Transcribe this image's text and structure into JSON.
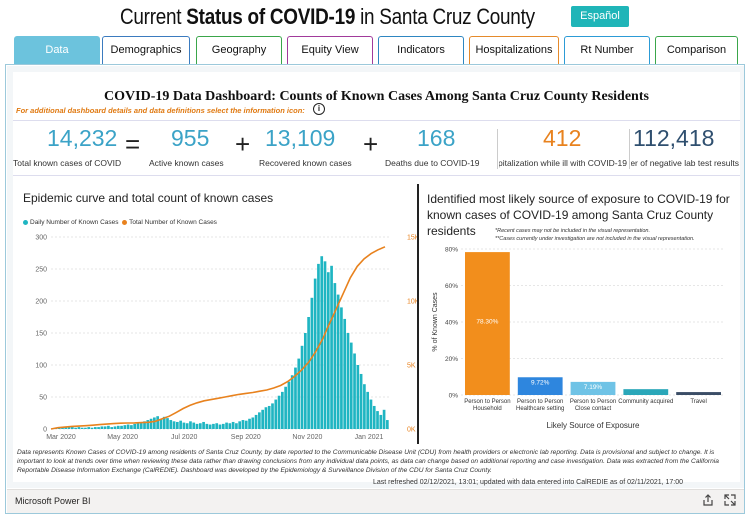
{
  "header": {
    "title_pre": "Current ",
    "title_bold": "Status of COVID-19",
    "title_post": " in Santa Cruz County",
    "espanol_label": "Español"
  },
  "tabs": [
    {
      "label": "Data",
      "active": true,
      "color": "#6cc3dd"
    },
    {
      "label": "Demographics",
      "active": false,
      "color": "#3b7bbf"
    },
    {
      "label": "Geography",
      "active": false,
      "color": "#3aa64a"
    },
    {
      "label": "Equity View",
      "active": false,
      "color": "#a13a9b"
    },
    {
      "label": "Indicators",
      "active": false,
      "color": "#2e86c1"
    },
    {
      "label": "Hospitalizations",
      "active": false,
      "color": "#e58a2b"
    },
    {
      "label": "Rt Number",
      "active": false,
      "color": "#2c9bd6"
    },
    {
      "label": "Comparison",
      "active": false,
      "color": "#3aa64a"
    }
  ],
  "dashboard": {
    "title": "COVID-19 Data Dashboard: Counts of Known Cases Among Santa Cruz County Residents",
    "info_text": "For additional dashboard details and data definitions select the information icon:",
    "info_icon": "i"
  },
  "kpis": {
    "total": {
      "value": "14,232",
      "label": "Total known cases of COVID"
    },
    "active": {
      "value": "955",
      "label": "Active known cases"
    },
    "recovered": {
      "value": "13,109",
      "label": "Recovered known cases"
    },
    "deaths": {
      "value": "168",
      "label": "Deaths due to COVID-19"
    },
    "hospital": {
      "value": "412",
      "label": "Required hospitalization while ill with COVID-19"
    },
    "negative": {
      "value": "112,418",
      "label": "Total number of negative lab test results"
    },
    "op_equals": "=",
    "op_plus": "+",
    "colors": {
      "teal": "#3ba3c7",
      "orange": "#e8821e",
      "navy": "#2f4f6f"
    }
  },
  "epi_chart": {
    "title": "Epidemic curve and total count of known cases",
    "legend_daily": "Daily Number of Known Cases",
    "legend_total": "Total Number of Known Cases",
    "color_daily": "#1fb5c2",
    "color_total": "#e8821e"
  },
  "exposure_chart": {
    "title": "Identified most likely source of exposure to COVID-19 for known cases of COVID-19 among Santa Cruz County residents",
    "note1": "*Recent cases may not be included in the visual representation.",
    "note2": "**Cases currently under investigation are not included in the visual representation."
  },
  "chart_data": [
    {
      "type": "bar",
      "title": "Epidemic curve and total count of known cases",
      "x_ticks": [
        "Mar 2020",
        "May 2020",
        "Jul 2020",
        "Sep 2020",
        "Nov 2020",
        "Jan 2021"
      ],
      "y_left_ticks": [
        "0",
        "50",
        "100",
        "150",
        "200",
        "250",
        "300"
      ],
      "y_right_ticks": [
        "0K",
        "5K",
        "10K",
        "15K"
      ],
      "ylim_left": [
        0,
        300
      ],
      "ylim_right": [
        0,
        15000
      ],
      "series": [
        {
          "name": "Daily Number of Known Cases",
          "axis": "left",
          "type": "bar",
          "values": [
            1,
            2,
            3,
            2,
            3,
            4,
            3,
            2,
            3,
            2,
            2,
            3,
            2,
            3,
            3,
            4,
            4,
            5,
            3,
            4,
            5,
            5,
            6,
            7,
            6,
            8,
            9,
            10,
            12,
            14,
            16,
            18,
            20,
            15,
            19,
            17,
            14,
            12,
            11,
            13,
            10,
            9,
            12,
            10,
            8,
            9,
            11,
            8,
            7,
            8,
            9,
            7,
            8,
            10,
            9,
            11,
            9,
            12,
            14,
            13,
            16,
            18,
            22,
            26,
            30,
            34,
            36,
            40,
            46,
            52,
            58,
            66,
            74,
            84,
            96,
            110,
            130,
            150,
            175,
            205,
            235,
            258,
            270,
            262,
            245,
            255,
            228,
            210,
            190,
            172,
            150,
            135,
            118,
            100,
            86,
            70,
            58,
            46,
            36,
            28,
            22,
            30,
            14
          ]
        },
        {
          "name": "Total Number of Known Cases",
          "axis": "right",
          "type": "line",
          "values": [
            0,
            100,
            150,
            200,
            230,
            260,
            300,
            340,
            380,
            420,
            450,
            470,
            480,
            500,
            520,
            600,
            800,
            1000,
            1300,
            1600,
            1850,
            2050,
            2200,
            2300,
            2400,
            2500,
            2600,
            2700,
            2780,
            2850,
            2950,
            3050,
            3200,
            3400,
            3700,
            4100,
            4600,
            5200,
            6000,
            7000,
            8200,
            9400,
            10600,
            11800,
            12700,
            13300,
            13700,
            14000,
            14232
          ]
        }
      ]
    },
    {
      "type": "bar",
      "title": "Identified most likely source of exposure to COVID-19 for known cases of COVID-19 among Santa Cruz County residents",
      "xlabel": "Likely Source of Exposure",
      "ylabel": "% of Known Cases",
      "ylim": [
        0,
        80
      ],
      "y_ticks": [
        "0%",
        "20%",
        "40%",
        "60%",
        "80%"
      ],
      "categories": [
        "Person to Person Household",
        "Person to Person Healthcare setting",
        "Person to Person Close contact",
        "Community acquired",
        "Travel"
      ],
      "values": [
        78.3,
        9.72,
        7.19,
        3.2,
        1.6
      ],
      "data_labels": [
        "78.30%",
        "9.72%",
        "7.19%",
        "",
        ""
      ],
      "colors": [
        "#f28e1c",
        "#2e86de",
        "#6fc3e6",
        "#2aa7b9",
        "#3b4d66"
      ]
    }
  ],
  "footnote": "Data represents Known Cases of COVID-19 among residents of Santa Cruz County, by date reported to the Communicable Disease Unit (CDU) from health providers or electronic lab reporting. Data is provisional and subject to change. It is important to look at trends over time when reviewing these data rather than drawing conclusions from any individual data points, as data can change based on additional reporting and case investigation. Data was extracted from the California Reportable Disease Information Exchange (CalREDIE). Dashboard was developed by the Epidemiology & Surveillance Division of the CDU for Santa Cruz County.",
  "refresh_text": "Last refreshed 02/12/2021, 13:01; updated with data entered into CalREDIE as of 02/11/2021, 17:00",
  "powerbi": {
    "link_label": "Microsoft Power BI",
    "share_icon": "share-icon",
    "fullscreen_icon": "fullscreen-icon"
  }
}
